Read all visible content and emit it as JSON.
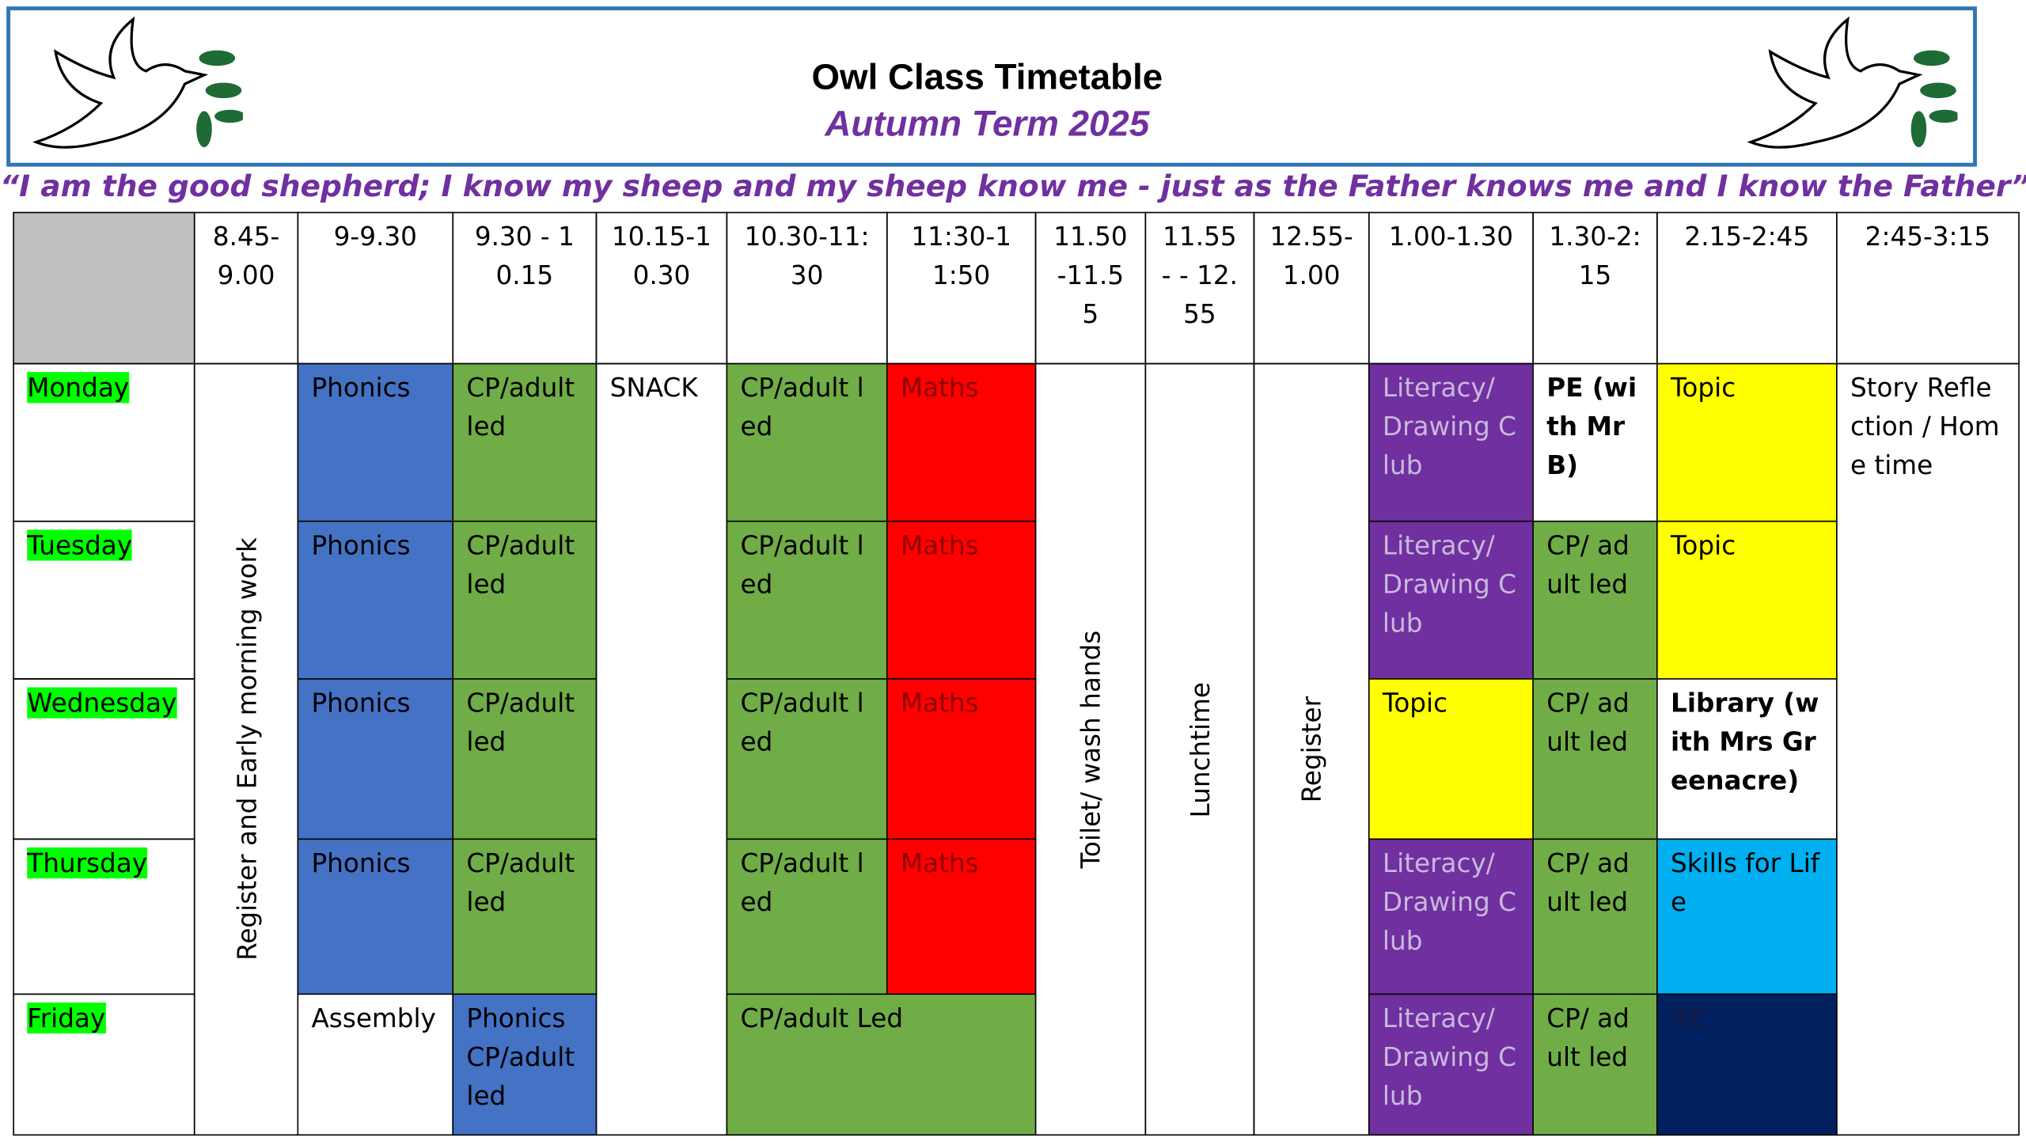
{
  "header": {
    "title": "Owl Class Timetable",
    "subtitle": "Autumn Term 2025"
  },
  "quote": "“I am the good shepherd; I know my sheep and my sheep know me - just as the Father knows me and I know the Father”.",
  "table": {
    "headers": [
      "8.45-9.00",
      "9-9.30",
      "9.30 - 10.15",
      "10.15-10.30",
      "10.30-11:30",
      "11:30-11:50",
      "11.50-11.55",
      "11.55 - - 12.55",
      "12.55-1.00",
      "1.00-1.30",
      "1.30-2:15",
      "2.15-2:45",
      "2:45-3:15"
    ],
    "days": [
      "Monday",
      "Tuesday",
      "Wednesday",
      "Thursday",
      "Friday"
    ],
    "spanning": [
      "Register and Early morning work",
      "SNACK",
      "Toilet/ wash hands",
      "Lunchtime",
      "Register",
      "Story Reflection / Home time"
    ],
    "rows": [
      [
        "Phonics",
        "CP/adult led",
        "CP/adult led",
        "Maths",
        "Literacy/ Drawing Club",
        "PE (with Mr B)",
        "Topic"
      ],
      [
        "Phonics",
        "CP/adult led",
        "CP/adult led",
        "Maths",
        "Literacy/ Drawing Club",
        "CP/ adult led",
        "Topic"
      ],
      [
        "Phonics",
        "CP/adult led",
        "CP/adult led",
        "Maths",
        "Topic",
        "CP/ adult led",
        "Library (with Mrs Greenacre)"
      ],
      [
        "Phonics",
        "CP/adult led",
        "CP/adult led",
        "Maths",
        "Literacy/ Drawing Club",
        "CP/ adult led",
        "Skills for Life"
      ],
      [
        "Assembly",
        "Phonics CP/adult led",
        "CP/adult Led",
        "Literacy/ Drawing Club",
        "CP/ adult led",
        "RE"
      ]
    ]
  }
}
